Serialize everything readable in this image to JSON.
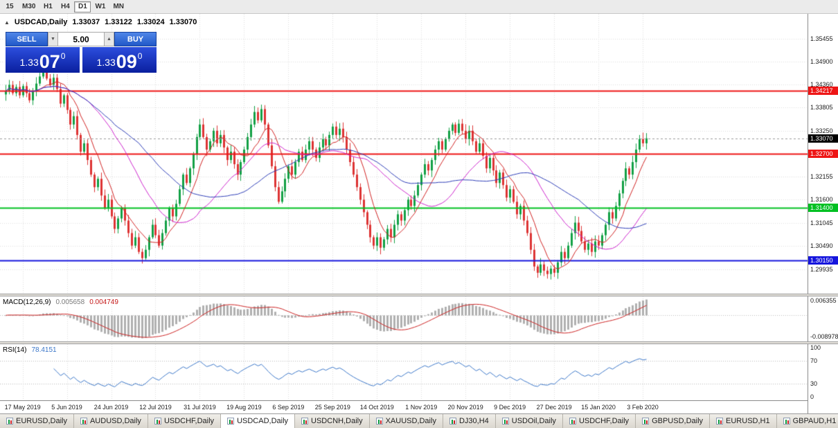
{
  "toolbar": {
    "timeframes": [
      {
        "label": "15",
        "active": false
      },
      {
        "label": "M30",
        "active": false
      },
      {
        "label": "H1",
        "active": false
      },
      {
        "label": "H4",
        "active": false
      },
      {
        "label": "D1",
        "active": true
      },
      {
        "label": "W1",
        "active": false
      },
      {
        "label": "MN",
        "active": false
      }
    ]
  },
  "symbol_header": {
    "collapse_icon": "▲",
    "symbol": "USDCAD,Daily",
    "open": "1.33037",
    "high": "1.33122",
    "low": "1.33024",
    "close": "1.33070"
  },
  "trade_panel": {
    "sell_label": "SELL",
    "buy_label": "BUY",
    "volume": "5.00",
    "down_arrow": "▼",
    "up_arrow": "▲",
    "sell_price": {
      "prefix": "1.33",
      "big": "07",
      "sup": "0"
    },
    "buy_price": {
      "prefix": "1.33",
      "big": "09",
      "sup": "0"
    }
  },
  "chart_data": {
    "type": "candlestick",
    "title": "USDCAD,Daily",
    "price_range": {
      "max": 1.3605,
      "min": 1.2935
    },
    "axis_ticks": [
      1.35455,
      1.349,
      1.3436,
      1.33805,
      1.3325,
      1.32155,
      1.316,
      1.31045,
      1.3049,
      1.29935
    ],
    "hlines": [
      {
        "price": 1.34217,
        "label": "1.34217",
        "color": "#ee1515",
        "width": 2
      },
      {
        "price": 1.327,
        "label": "1.32700",
        "color": "#ee1515",
        "width": 2
      },
      {
        "price": 1.314,
        "label": "1.31400",
        "color": "#00c022",
        "width": 2
      },
      {
        "price": 1.3015,
        "label": "1.30150",
        "color": "#1515dd",
        "width": 2
      }
    ],
    "current_price": {
      "price": 1.3307,
      "label": "1.33070",
      "color": "#000000"
    },
    "up_color": "#12a045",
    "down_color": "#dd3333",
    "wick": {
      "base": 0.0004,
      "var": 0.0012
    },
    "moving_averages": [
      {
        "period": 8,
        "color": "#d02020"
      },
      {
        "period": 25,
        "color": "#cc22cc"
      },
      {
        "period": 40,
        "color": "#2b3bb6"
      }
    ],
    "x_labels": [
      {
        "index": 5,
        "label": "17 May 2019"
      },
      {
        "index": 18,
        "label": "5 Jun 2019"
      },
      {
        "index": 31,
        "label": "24 Jun 2019"
      },
      {
        "index": 44,
        "label": "12 Jul 2019"
      },
      {
        "index": 57,
        "label": "31 Jul 2019"
      },
      {
        "index": 70,
        "label": "19 Aug 2019"
      },
      {
        "index": 83,
        "label": "6 Sep 2019"
      },
      {
        "index": 96,
        "label": "25 Sep 2019"
      },
      {
        "index": 109,
        "label": "14 Oct 2019"
      },
      {
        "index": 122,
        "label": "1 Nov 2019"
      },
      {
        "index": 135,
        "label": "20 Nov 2019"
      },
      {
        "index": 148,
        "label": "9 Dec 2019"
      },
      {
        "index": 161,
        "label": "27 Dec 2019"
      },
      {
        "index": 174,
        "label": "15 Jan 2020"
      },
      {
        "index": 187,
        "label": "3 Feb 2020"
      }
    ],
    "closes": [
      1.342,
      1.3435,
      1.3415,
      1.343,
      1.341,
      1.3432,
      1.3415,
      1.3398,
      1.342,
      1.3438,
      1.3455,
      1.3468,
      1.345,
      1.3435,
      1.3452,
      1.3425,
      1.339,
      1.341,
      1.3375,
      1.334,
      1.336,
      1.3315,
      1.3275,
      1.3295,
      1.3255,
      1.322,
      1.319,
      1.321,
      1.317,
      1.314,
      1.316,
      1.312,
      1.309,
      1.3115,
      1.314,
      1.311,
      1.308,
      1.305,
      1.307,
      1.3035,
      1.302,
      1.304,
      1.307,
      1.31,
      1.3075,
      1.305,
      1.308,
      1.311,
      1.314,
      1.312,
      1.315,
      1.3185,
      1.322,
      1.32,
      1.3235,
      1.327,
      1.331,
      1.334,
      1.331,
      1.328,
      1.33,
      1.3325,
      1.3295,
      1.3315,
      1.3285,
      1.3255,
      1.3275,
      1.3245,
      1.322,
      1.325,
      1.328,
      1.331,
      1.334,
      1.337,
      1.335,
      1.3377,
      1.334,
      1.329,
      1.324,
      1.319,
      1.3155,
      1.318,
      1.321,
      1.324,
      1.322,
      1.325,
      1.3275,
      1.3255,
      1.328,
      1.33,
      1.328,
      1.326,
      1.3285,
      1.3305,
      1.329,
      1.3315,
      1.3335,
      1.3315,
      1.333,
      1.331,
      1.328,
      1.325,
      1.322,
      1.319,
      1.316,
      1.313,
      1.31,
      1.307,
      1.305,
      1.307,
      1.3045,
      1.3065,
      1.309,
      1.307,
      1.31,
      1.3125,
      1.311,
      1.3135,
      1.316,
      1.3145,
      1.317,
      1.3195,
      1.322,
      1.3245,
      1.323,
      1.3255,
      1.328,
      1.33,
      1.328,
      1.3305,
      1.3325,
      1.334,
      1.332,
      1.3342,
      1.3325,
      1.3305,
      1.3325,
      1.33,
      1.3275,
      1.3295,
      1.3265,
      1.3235,
      1.326,
      1.323,
      1.32,
      1.3225,
      1.3195,
      1.3165,
      1.3185,
      1.3155,
      1.3125,
      1.3145,
      1.311,
      1.308,
      1.304,
      1.3,
      1.2985,
      1.3005,
      1.299,
      1.2982,
      1.2995,
      1.2985,
      1.301,
      1.3035,
      1.302,
      1.305,
      1.308,
      1.3105,
      1.3085,
      1.306,
      1.304,
      1.3055,
      1.3035,
      1.306,
      1.305,
      1.3075,
      1.31,
      1.313,
      1.3115,
      1.3145,
      1.3175,
      1.3205,
      1.3235,
      1.322,
      1.325,
      1.328,
      1.3305,
      1.3295,
      1.3307
    ],
    "indicators": {
      "macd": {
        "title": "MACD(12,26,9)",
        "fast": 12,
        "slow": 26,
        "signal": 9,
        "value_main": "0.005658",
        "value_signal": "0.004749",
        "axis_max_label": "0.006355",
        "axis_min_label": "-0.008978",
        "hist_color": "#b0b0b0",
        "signal_color": "#cc2020"
      },
      "rsi": {
        "title": "RSI(14)",
        "period": 14,
        "value": "78.4151",
        "levels": [
          100,
          70,
          30,
          0
        ],
        "dotted_levels": [
          70,
          30
        ],
        "line_color": "#3a76c8"
      }
    }
  },
  "tabs": [
    {
      "label": "EURUSD,Daily",
      "active": false
    },
    {
      "label": "AUDUSD,Daily",
      "active": false
    },
    {
      "label": "USDCHF,Daily",
      "active": false
    },
    {
      "label": "USDCAD,Daily",
      "active": true
    },
    {
      "label": "USDCNH,Daily",
      "active": false
    },
    {
      "label": "XAUUSD,Daily",
      "active": false
    },
    {
      "label": "DJ30,H4",
      "active": false
    },
    {
      "label": "USDOil,Daily",
      "active": false
    },
    {
      "label": "USDCHF,Daily",
      "active": false
    },
    {
      "label": "GBPUSD,Daily",
      "active": false
    },
    {
      "label": "EURUSD,H1",
      "active": false
    },
    {
      "label": "GBPAUD,H1",
      "active": false
    }
  ]
}
